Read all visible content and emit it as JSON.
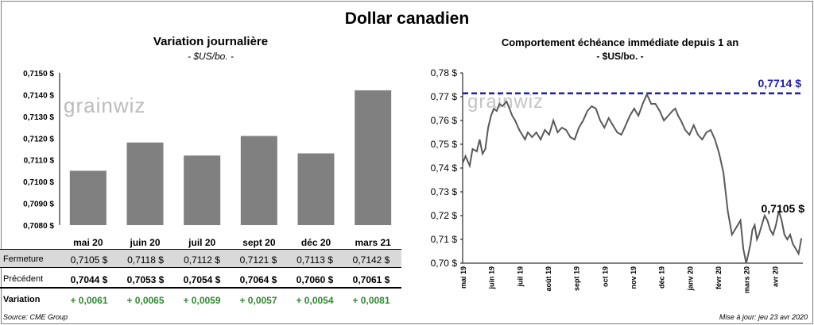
{
  "main_title": "Dollar canadien",
  "left": {
    "title": "Variation  journalière",
    "subtitle": "- $US/bo. -"
  },
  "right": {
    "title": "Comportement échéance immédiate depuis 1 an",
    "subtitle": "- $US/bo. -"
  },
  "watermark": "grainwiz",
  "table": {
    "row_labels": [
      "Fermeture",
      "Précédent",
      "Variation"
    ],
    "close": [
      "0,7105  $",
      "0,7118  $",
      "0,7112  $",
      "0,7121  $",
      "0,7113  $",
      "0,7142  $"
    ],
    "previous": [
      "0,7044  $",
      "0,7053  $",
      "0,7054  $",
      "0,7064  $",
      "0,7060  $",
      "0,7061  $"
    ],
    "variation": [
      "+ 0,0061",
      "+ 0,0065",
      "+ 0,0059",
      "+ 0,0057",
      "+ 0,0054",
      "+ 0,0081"
    ]
  },
  "footer": {
    "source": "Source: CME Group",
    "update": "Mise à jour: jeu 23 avr 2020"
  },
  "colors": {
    "bar": "#808080",
    "line": "#595959",
    "max_line": "#1f1fa6",
    "positive": "#2e8b2e"
  },
  "chart_data": [
    {
      "type": "bar",
      "title": "Variation  journalière",
      "subtitle": "- $US/bo. -",
      "categories": [
        "mai 20",
        "juin 20",
        "juil 20",
        "sept 20",
        "déc 20",
        "mars 21"
      ],
      "values": [
        0.7105,
        0.7118,
        0.7112,
        0.7121,
        0.7113,
        0.7142
      ],
      "ylim": [
        0.708,
        0.715
      ],
      "yticks": [
        "0,7080 $",
        "0,7090 $",
        "0,7100 $",
        "0,7110 $",
        "0,7120 $",
        "0,7130 $",
        "0,7140 $",
        "0,7150 $"
      ],
      "ytick_values": [
        0.708,
        0.709,
        0.71,
        0.711,
        0.712,
        0.713,
        0.714,
        0.715
      ]
    },
    {
      "type": "line",
      "title": "Comportement échéance immédiate depuis 1 an",
      "subtitle": "- $US/bo. -",
      "ylim": [
        0.7,
        0.78
      ],
      "yticks": [
        "0,70 $",
        "0,71 $",
        "0,72 $",
        "0,73 $",
        "0,74 $",
        "0,75 $",
        "0,76 $",
        "0,77 $",
        "0,78 $"
      ],
      "ytick_values": [
        0.7,
        0.71,
        0.72,
        0.73,
        0.74,
        0.75,
        0.76,
        0.77,
        0.78
      ],
      "xticks": [
        "mai 19",
        "juin 19",
        "juil 19",
        "août 19",
        "sept 19",
        "oct 19",
        "nov 19",
        "déc 19",
        "janv 20",
        "févr 20",
        "mars 20",
        "avr 20"
      ],
      "x_range": [
        0,
        12
      ],
      "max_value": 0.7714,
      "max_label": "0,7714  $",
      "last_label": "0,7105 $",
      "series": [
        {
          "name": "Dollar canadien",
          "x": [
            0.0,
            0.1,
            0.25,
            0.35,
            0.5,
            0.6,
            0.7,
            0.8,
            0.9,
            1.0,
            1.1,
            1.2,
            1.3,
            1.4,
            1.55,
            1.65,
            1.75,
            1.85,
            2.0,
            2.1,
            2.2,
            2.3,
            2.45,
            2.6,
            2.75,
            2.9,
            3.05,
            3.2,
            3.35,
            3.5,
            3.65,
            3.8,
            3.95,
            4.1,
            4.25,
            4.4,
            4.55,
            4.7,
            4.85,
            5.0,
            5.15,
            5.3,
            5.45,
            5.6,
            5.75,
            5.9,
            6.05,
            6.2,
            6.35,
            6.5,
            6.65,
            6.8,
            6.95,
            7.1,
            7.25,
            7.4,
            7.5,
            7.6,
            7.7,
            7.85,
            8.0,
            8.15,
            8.3,
            8.45,
            8.6,
            8.75,
            8.9,
            9.05,
            9.2,
            9.35,
            9.5,
            9.6,
            9.7,
            9.8,
            9.9,
            10.0,
            10.08,
            10.15,
            10.22,
            10.3,
            10.38,
            10.45,
            10.55,
            10.65,
            10.75,
            10.85,
            10.95,
            11.05,
            11.15,
            11.25,
            11.35,
            11.45,
            11.55,
            11.65,
            11.75,
            11.85,
            11.95
          ],
          "y": [
            0.742,
            0.745,
            0.741,
            0.748,
            0.747,
            0.752,
            0.746,
            0.748,
            0.757,
            0.762,
            0.765,
            0.764,
            0.767,
            0.766,
            0.768,
            0.765,
            0.762,
            0.76,
            0.756,
            0.754,
            0.752,
            0.755,
            0.753,
            0.755,
            0.752,
            0.756,
            0.754,
            0.76,
            0.755,
            0.757,
            0.756,
            0.753,
            0.752,
            0.757,
            0.76,
            0.764,
            0.766,
            0.765,
            0.76,
            0.757,
            0.761,
            0.758,
            0.755,
            0.754,
            0.758,
            0.762,
            0.765,
            0.762,
            0.767,
            0.771,
            0.767,
            0.767,
            0.764,
            0.76,
            0.762,
            0.764,
            0.765,
            0.762,
            0.76,
            0.756,
            0.754,
            0.758,
            0.754,
            0.752,
            0.755,
            0.756,
            0.752,
            0.746,
            0.738,
            0.722,
            0.712,
            0.714,
            0.716,
            0.718,
            0.706,
            0.7,
            0.704,
            0.708,
            0.714,
            0.716,
            0.71,
            0.712,
            0.716,
            0.72,
            0.718,
            0.714,
            0.712,
            0.716,
            0.722,
            0.718,
            0.712,
            0.71,
            0.712,
            0.708,
            0.706,
            0.704,
            0.7105
          ]
        }
      ]
    }
  ]
}
